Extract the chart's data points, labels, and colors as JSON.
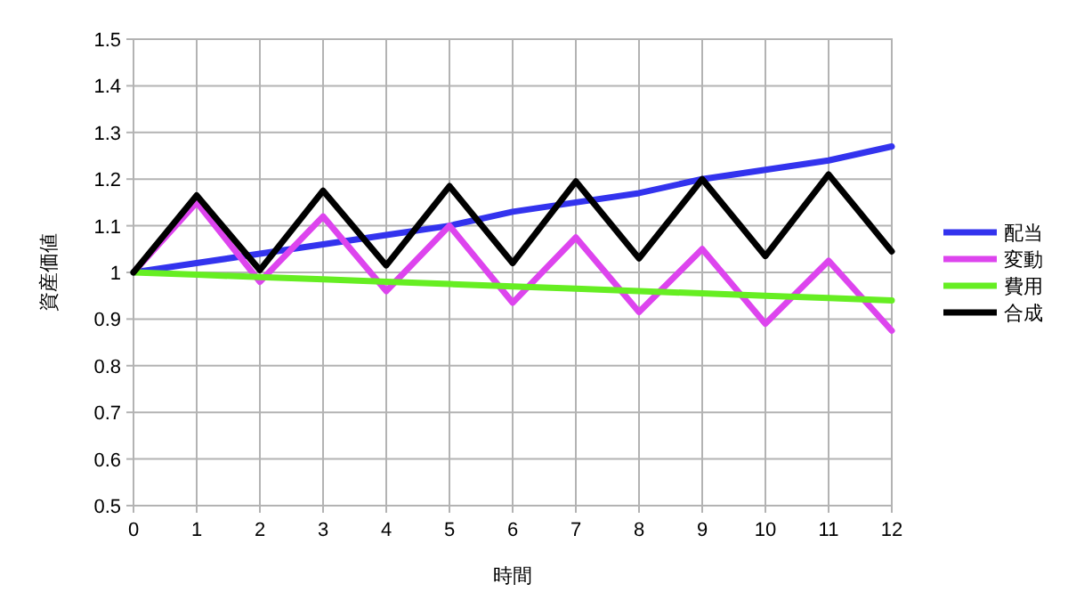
{
  "chart_data": {
    "type": "line",
    "xlabel": "時間",
    "ylabel": "資産価値",
    "x": [
      0,
      1,
      2,
      3,
      4,
      5,
      6,
      7,
      8,
      9,
      10,
      11,
      12
    ],
    "xlim": [
      0,
      12
    ],
    "xticks": [
      0,
      1,
      2,
      3,
      4,
      5,
      6,
      7,
      8,
      9,
      10,
      11,
      12
    ],
    "ylim": [
      0.5,
      1.5
    ],
    "yticks": [
      0.5,
      0.6,
      0.7,
      0.8,
      0.9,
      1,
      1.1,
      1.2,
      1.3,
      1.4,
      1.5
    ],
    "grid": true,
    "legend": "right",
    "marker": "none",
    "line_style": "solid",
    "series": [
      {
        "name": "配当",
        "color": "#3333ee",
        "values": [
          1,
          1.02,
          1.04,
          1.06,
          1.08,
          1.1,
          1.13,
          1.15,
          1.17,
          1.2,
          1.22,
          1.24,
          1.27
        ]
      },
      {
        "name": "変動",
        "color": "#dd44ee",
        "values": [
          1,
          1.15,
          0.98,
          1.12,
          0.96,
          1.1,
          0.935,
          1.075,
          0.915,
          1.05,
          0.89,
          1.025,
          0.875
        ]
      },
      {
        "name": "費用",
        "color": "#66ee22",
        "values": [
          1,
          0.995,
          0.99,
          0.985,
          0.98,
          0.975,
          0.97,
          0.965,
          0.96,
          0.955,
          0.95,
          0.945,
          0.94
        ]
      },
      {
        "name": "合成",
        "color": "#000000",
        "values": [
          1,
          1.165,
          1.005,
          1.175,
          1.015,
          1.185,
          1.02,
          1.195,
          1.03,
          1.2,
          1.035,
          1.21,
          1.045
        ]
      }
    ]
  }
}
